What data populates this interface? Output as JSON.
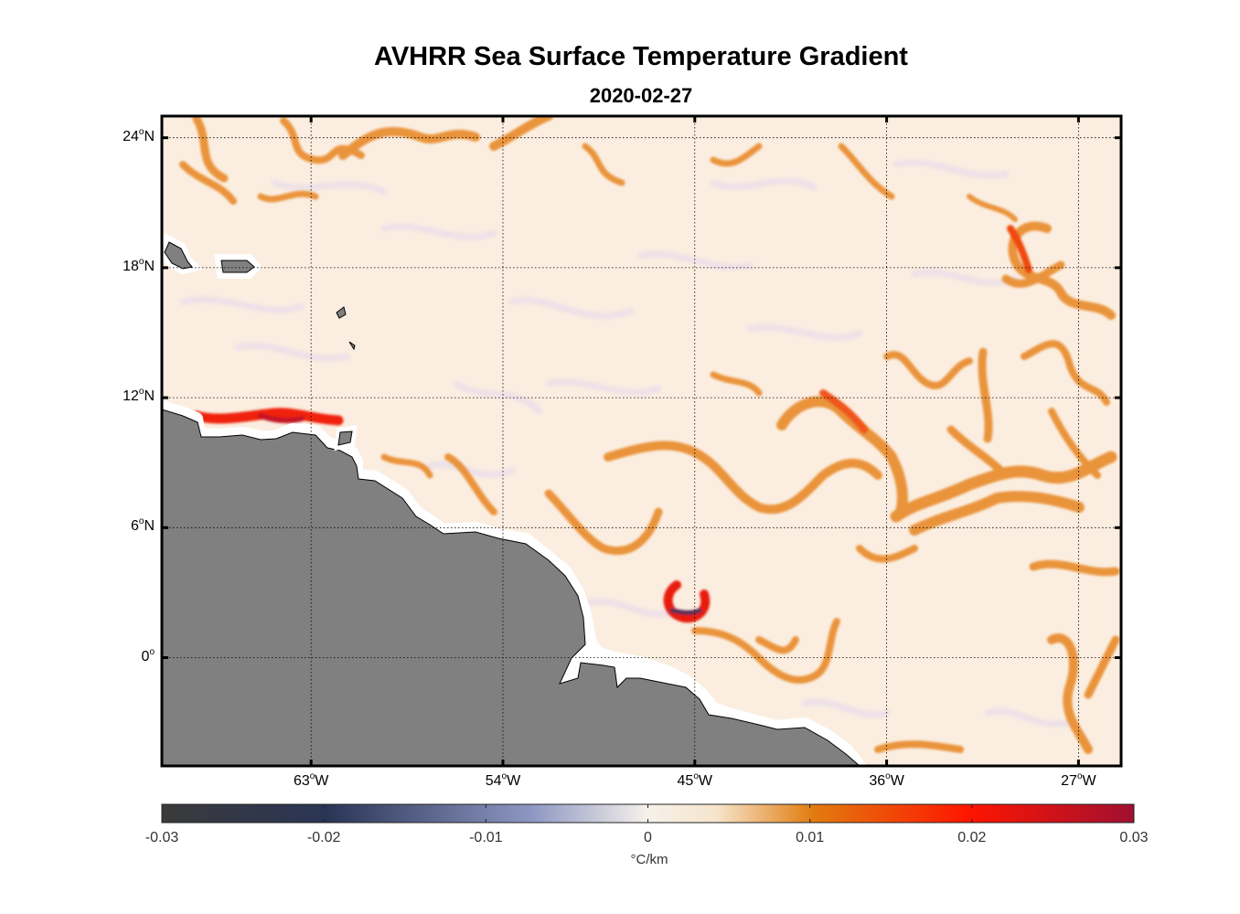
{
  "title": "AVHRR Sea Surface Temperature Gradient",
  "subtitle": "2020-02-27",
  "map": {
    "lon_range": [
      -70,
      -25
    ],
    "lat_range": [
      -5,
      25
    ],
    "lat_ticks": [
      {
        "value": 24,
        "deg": "24",
        "hemi": "N"
      },
      {
        "value": 18,
        "deg": "18",
        "hemi": "N"
      },
      {
        "value": 12,
        "deg": "12",
        "hemi": "N"
      },
      {
        "value": 6,
        "deg": "6",
        "hemi": "N"
      },
      {
        "value": 0,
        "deg": "0",
        "hemi": ""
      }
    ],
    "lon_ticks": [
      {
        "value": -63,
        "deg": "63",
        "hemi": "W"
      },
      {
        "value": -54,
        "deg": "54",
        "hemi": "W"
      },
      {
        "value": -45,
        "deg": "45",
        "hemi": "W"
      },
      {
        "value": -36,
        "deg": "36",
        "hemi": "W"
      },
      {
        "value": -27,
        "deg": "27",
        "hemi": "W"
      }
    ],
    "grid": true,
    "land_color": "#808080",
    "ocean_color": "#fbeee0"
  },
  "colorbar": {
    "label": "°C/km",
    "ticks": [
      "-0.03",
      "-0.02",
      "-0.01",
      "0",
      "0.01",
      "0.02",
      "0.03"
    ],
    "range": [
      -0.03,
      0.03
    ],
    "stops": [
      "#3a3a3a",
      "#2a3556",
      "#8d97c3",
      "#f6f1ea",
      "#f6e5cc",
      "#e27b0f",
      "#ff1500",
      "#a01030"
    ]
  }
}
